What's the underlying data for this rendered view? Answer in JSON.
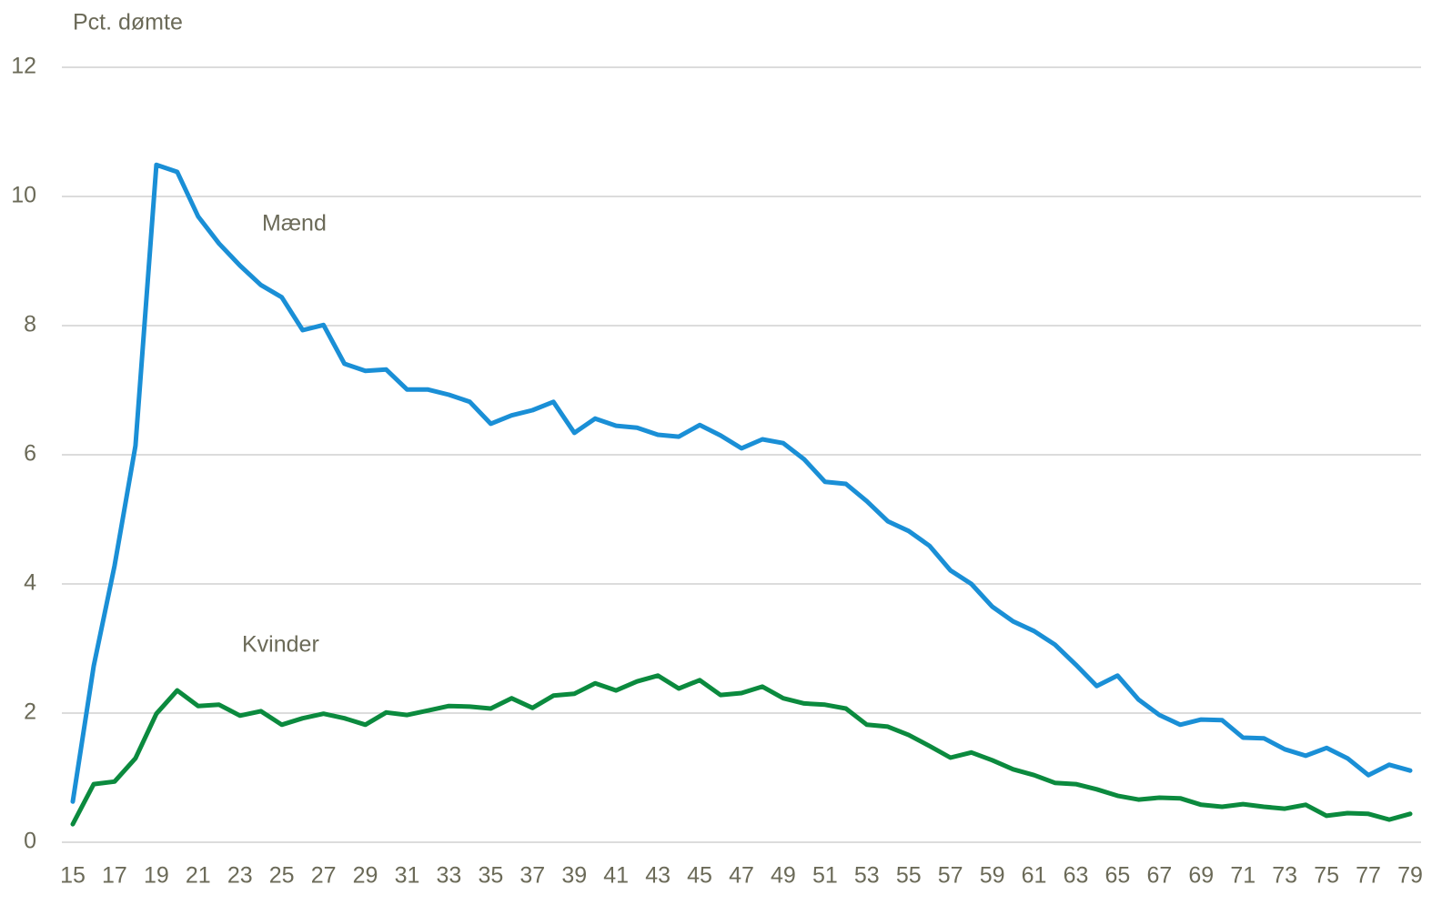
{
  "chart_data": {
    "type": "line",
    "y_label": "Pct. dømte",
    "categories": [
      "15",
      null,
      "17",
      null,
      "19",
      null,
      "21",
      null,
      "23",
      null,
      "25",
      null,
      "27",
      null,
      "29",
      null,
      "31",
      null,
      "33",
      null,
      "35",
      null,
      "37",
      null,
      "39",
      null,
      "41",
      null,
      "43",
      null,
      "45",
      null,
      "47",
      null,
      "49",
      null,
      "51",
      null,
      "53",
      null,
      "55",
      null,
      "57",
      null,
      "59",
      null,
      "61",
      null,
      "63",
      null,
      "65",
      null,
      "67",
      null,
      "69",
      null,
      "71",
      null,
      "73",
      null,
      "75",
      null,
      "77",
      null,
      "79"
    ],
    "series": [
      {
        "name": "Mænd",
        "color": "#1a8fd6",
        "values": [
          0.63,
          2.73,
          4.28,
          6.14,
          10.49,
          10.38,
          9.69,
          9.27,
          8.93,
          8.63,
          8.44,
          7.93,
          8.01,
          7.41,
          7.3,
          7.32,
          7.01,
          7.01,
          6.93,
          6.82,
          6.48,
          6.61,
          6.69,
          6.82,
          6.34,
          6.56,
          6.45,
          6.42,
          6.31,
          6.28,
          6.46,
          6.3,
          6.1,
          6.24,
          6.18,
          5.93,
          5.58,
          5.55,
          5.28,
          4.97,
          4.82,
          4.59,
          4.21,
          4.0,
          3.65,
          3.42,
          3.27,
          3.06,
          2.75,
          2.42,
          2.58,
          2.21,
          1.97,
          1.82,
          1.9,
          1.89,
          1.62,
          1.61,
          1.44,
          1.34,
          1.46,
          1.3,
          1.04,
          1.2,
          1.11
        ]
      },
      {
        "name": "Kvinder",
        "color": "#0b8a3e",
        "values": [
          0.28,
          0.9,
          0.94,
          1.3,
          1.99,
          2.35,
          2.11,
          2.13,
          1.96,
          2.03,
          1.82,
          1.92,
          1.99,
          1.92,
          1.82,
          2.01,
          1.97,
          2.04,
          2.11,
          2.1,
          2.07,
          2.23,
          2.08,
          2.27,
          2.3,
          2.46,
          2.35,
          2.49,
          2.58,
          2.38,
          2.51,
          2.28,
          2.31,
          2.41,
          2.23,
          2.15,
          2.13,
          2.07,
          1.82,
          1.79,
          1.66,
          1.49,
          1.31,
          1.39,
          1.27,
          1.13,
          1.04,
          0.92,
          0.9,
          0.82,
          0.72,
          0.66,
          0.69,
          0.68,
          0.58,
          0.55,
          0.59,
          0.55,
          0.52,
          0.58,
          0.41,
          0.45,
          0.44,
          0.35,
          0.44
        ]
      }
    ],
    "ylim": [
      0,
      12
    ],
    "yticks": [
      0,
      2,
      4,
      6,
      8,
      10,
      12
    ],
    "grid": true
  }
}
